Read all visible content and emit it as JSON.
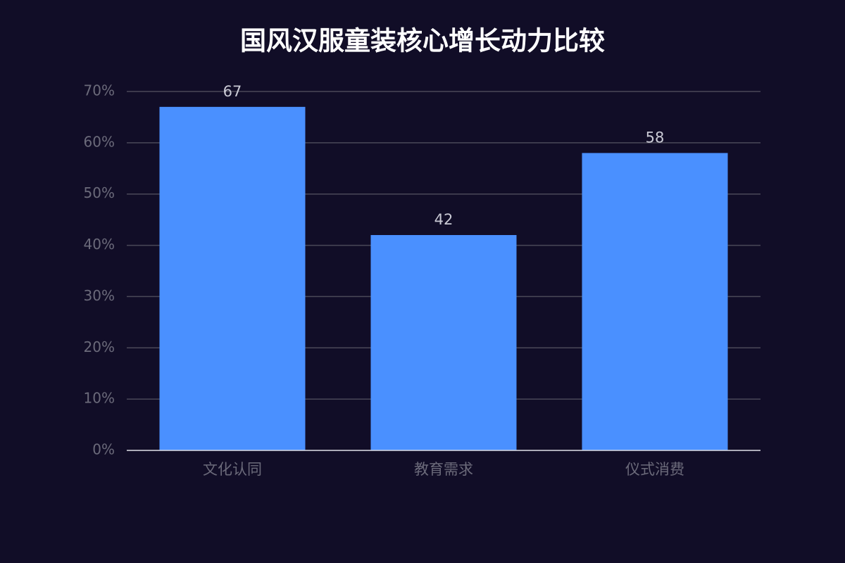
{
  "chart_data": {
    "type": "bar",
    "title": "国风汉服童装核心增长动力比较",
    "categories": [
      "文化认同",
      "教育需求",
      "仪式消费"
    ],
    "values": [
      67,
      42,
      58
    ],
    "color": "#4a90ff",
    "ylim": [
      0,
      70
    ],
    "yticks": [
      {
        "value": 0,
        "label": "0%"
      },
      {
        "value": 10,
        "label": "10%"
      },
      {
        "value": 20,
        "label": "20%"
      },
      {
        "value": 30,
        "label": "30%"
      },
      {
        "value": 40,
        "label": "40%"
      },
      {
        "value": 50,
        "label": "50%"
      },
      {
        "value": 60,
        "label": "60%"
      },
      {
        "value": 70,
        "label": "70%"
      }
    ],
    "grid": true
  }
}
